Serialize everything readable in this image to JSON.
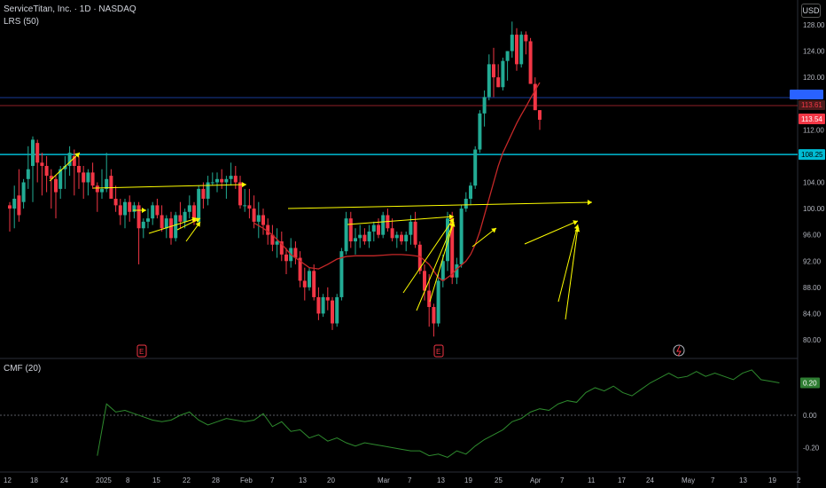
{
  "header": {
    "symbol_line": "ServiceTitan, Inc. · 1D · NASDAQ",
    "indicator": "LRS (50)",
    "currency": "USD",
    "cmf_label": "CMF (20)"
  },
  "colors": {
    "up": "#22ab94",
    "down": "#f23645",
    "trendline": "#ffff00",
    "level_line": "#00bcd4",
    "lrs_line": "#c62828",
    "cmf_line": "#2e8b2e"
  },
  "chart_data": [
    {
      "type": "candlestick",
      "title": "ServiceTitan, Inc. · 1D · NASDAQ",
      "x_tick_labels": [
        "12",
        "18",
        "24",
        "2025",
        "8",
        "15",
        "22",
        "28",
        "Feb",
        "7",
        "13",
        "20",
        "Mar",
        "7",
        "13",
        "19",
        "25",
        "Apr",
        "7",
        "11",
        "17",
        "24",
        "May",
        "7",
        "13",
        "19",
        "2"
      ],
      "y_ticks": [
        80,
        84,
        88,
        92,
        96,
        100,
        104,
        108,
        112,
        116,
        120,
        124,
        128
      ],
      "ylim": [
        78.5,
        130
      ],
      "horizontal_levels": [
        {
          "value": 108.25,
          "label": "108.25"
        },
        {
          "value": 113.54,
          "label": "113.54"
        },
        {
          "value": 113.61,
          "label": "113.61"
        }
      ],
      "last_price_label": "113.54",
      "earnings_markers": [
        "E",
        "E"
      ],
      "candles": [
        [
          100.5,
          101.0,
          96.5,
          100.0
        ],
        [
          100.0,
          103.5,
          97.0,
          101.5
        ],
        [
          102.0,
          106.0,
          98.0,
          99.0
        ],
        [
          101.0,
          104.5,
          100.0,
          104.0
        ],
        [
          104.5,
          109.5,
          103.0,
          106.0
        ],
        [
          106.5,
          111.0,
          101.0,
          110.5
        ],
        [
          110.0,
          110.5,
          104.0,
          107.0
        ],
        [
          107.0,
          108.5,
          102.0,
          106.5
        ],
        [
          106.5,
          108.0,
          102.5,
          105.0
        ],
        [
          105.0,
          106.0,
          100.0,
          104.5
        ],
        [
          104.5,
          105.0,
          98.5,
          102.5
        ],
        [
          103.0,
          106.5,
          101.5,
          106.0
        ],
        [
          106.0,
          108.0,
          103.0,
          106.5
        ],
        [
          106.5,
          109.5,
          105.0,
          108.5
        ],
        [
          108.0,
          109.0,
          102.0,
          106.5
        ],
        [
          106.5,
          108.0,
          103.0,
          105.5
        ],
        [
          105.5,
          106.5,
          101.5,
          104.0
        ],
        [
          104.0,
          106.0,
          102.0,
          105.5
        ],
        [
          105.5,
          107.0,
          103.0,
          103.5
        ],
        [
          103.5,
          104.0,
          99.5,
          102.5
        ],
        [
          102.5,
          106.0,
          101.5,
          103.0
        ],
        [
          103.0,
          108.5,
          102.5,
          104.5
        ],
        [
          105.0,
          106.0,
          101.5,
          101.5
        ],
        [
          101.5,
          103.5,
          99.5,
          100.5
        ],
        [
          100.5,
          101.5,
          97.5,
          99.0
        ],
        [
          99.0,
          101.5,
          97.0,
          101.0
        ],
        [
          101.0,
          102.0,
          98.0,
          99.5
        ],
        [
          99.5,
          101.0,
          98.5,
          100.5
        ],
        [
          100.5,
          101.0,
          91.5,
          97.0
        ],
        [
          97.0,
          98.5,
          95.5,
          98.0
        ],
        [
          98.0,
          100.0,
          97.0,
          98.5
        ],
        [
          98.5,
          101.0,
          97.5,
          100.5
        ],
        [
          100.5,
          101.5,
          98.5,
          99.0
        ],
        [
          99.0,
          100.5,
          96.5,
          97.0
        ],
        [
          97.0,
          99.0,
          95.5,
          98.5
        ],
        [
          98.5,
          99.5,
          94.5,
          95.5
        ],
        [
          95.5,
          99.5,
          95.0,
          99.0
        ],
        [
          99.0,
          101.0,
          97.0,
          98.0
        ],
        [
          98.0,
          100.0,
          97.0,
          99.5
        ],
        [
          99.5,
          102.0,
          98.5,
          100.5
        ],
        [
          100.5,
          101.0,
          97.5,
          98.0
        ],
        [
          98.0,
          103.5,
          97.5,
          103.0
        ],
        [
          103.0,
          104.0,
          100.0,
          101.5
        ],
        [
          101.5,
          105.0,
          100.5,
          104.0
        ],
        [
          104.0,
          105.5,
          103.5,
          104.0
        ],
        [
          104.0,
          105.5,
          102.5,
          104.5
        ],
        [
          104.5,
          106.0,
          103.0,
          104.0
        ],
        [
          104.0,
          105.0,
          101.5,
          104.5
        ],
        [
          104.5,
          107.0,
          103.5,
          105.0
        ],
        [
          105.0,
          106.5,
          103.0,
          104.0
        ],
        [
          104.0,
          105.0,
          100.0,
          100.5
        ],
        [
          100.5,
          103.0,
          99.5,
          100.5
        ],
        [
          100.5,
          103.0,
          98.5,
          100.0
        ],
        [
          100.0,
          102.0,
          97.0,
          98.0
        ],
        [
          98.0,
          101.0,
          95.5,
          99.0
        ],
        [
          99.0,
          100.0,
          96.0,
          97.5
        ],
        [
          97.5,
          98.5,
          94.5,
          96.0
        ],
        [
          96.0,
          97.5,
          93.5,
          94.5
        ],
        [
          94.5,
          97.0,
          92.5,
          95.0
        ],
        [
          95.0,
          96.5,
          92.0,
          93.0
        ],
        [
          93.0,
          94.0,
          90.0,
          92.0
        ],
        [
          92.0,
          95.5,
          91.0,
          94.0
        ],
        [
          94.0,
          95.0,
          91.5,
          92.5
        ],
        [
          92.5,
          93.5,
          88.0,
          89.0
        ],
        [
          89.0,
          91.0,
          86.0,
          88.0
        ],
        [
          88.0,
          91.0,
          87.5,
          90.5
        ],
        [
          90.5,
          91.5,
          86.0,
          86.5
        ],
        [
          86.5,
          88.0,
          83.0,
          84.0
        ],
        [
          84.0,
          87.0,
          83.5,
          86.5
        ],
        [
          86.5,
          88.0,
          84.5,
          86.0
        ],
        [
          86.0,
          86.5,
          81.5,
          82.5
        ],
        [
          82.5,
          87.0,
          82.0,
          86.5
        ],
        [
          86.5,
          94.0,
          86.0,
          93.5
        ],
        [
          93.5,
          99.5,
          93.0,
          98.5
        ],
        [
          98.5,
          99.5,
          94.0,
          95.0
        ],
        [
          95.0,
          97.0,
          93.0,
          95.5
        ],
        [
          95.5,
          97.5,
          94.0,
          96.0
        ],
        [
          96.0,
          97.0,
          94.5,
          95.0
        ],
        [
          95.0,
          97.5,
          94.0,
          96.5
        ],
        [
          96.5,
          98.0,
          95.0,
          97.5
        ],
        [
          97.5,
          98.5,
          95.5,
          96.0
        ],
        [
          96.0,
          99.5,
          95.5,
          99.0
        ],
        [
          99.0,
          100.0,
          96.5,
          97.0
        ],
        [
          97.0,
          98.5,
          95.0,
          95.5
        ],
        [
          95.5,
          96.5,
          94.0,
          96.0
        ],
        [
          96.0,
          96.5,
          94.5,
          95.0
        ],
        [
          95.0,
          96.5,
          93.5,
          96.0
        ],
        [
          96.0,
          99.0,
          94.5,
          98.0
        ],
        [
          98.0,
          99.5,
          94.0,
          94.5
        ],
        [
          94.5,
          95.0,
          90.0,
          90.5
        ],
        [
          90.5,
          91.5,
          86.0,
          87.5
        ],
        [
          87.5,
          90.0,
          82.0,
          85.0
        ],
        [
          85.0,
          85.5,
          80.5,
          82.5
        ],
        [
          82.5,
          90.0,
          82.0,
          89.0
        ],
        [
          89.0,
          93.0,
          88.0,
          92.0
        ],
        [
          92.0,
          99.5,
          90.5,
          98.5
        ],
        [
          98.5,
          99.5,
          88.5,
          89.5
        ],
        [
          89.5,
          92.5,
          88.5,
          91.5
        ],
        [
          91.5,
          100.5,
          91.0,
          100.0
        ],
        [
          100.0,
          102.5,
          99.5,
          101.5
        ],
        [
          101.5,
          104.0,
          100.5,
          103.5
        ],
        [
          103.5,
          109.5,
          103.0,
          109.0
        ],
        [
          109.0,
          115.0,
          108.5,
          114.5
        ],
        [
          114.5,
          118.0,
          112.5,
          117.0
        ],
        [
          117.0,
          123.5,
          116.5,
          122.0
        ],
        [
          122.0,
          124.5,
          117.0,
          120.0
        ],
        [
          120.0,
          122.0,
          118.5,
          118.5
        ],
        [
          118.5,
          123.0,
          118.0,
          122.5
        ],
        [
          122.5,
          124.0,
          119.5,
          124.0
        ],
        [
          124.0,
          128.5,
          123.0,
          126.5
        ],
        [
          126.5,
          127.5,
          121.0,
          122.0
        ],
        [
          122.0,
          127.0,
          121.5,
          126.5
        ],
        [
          126.5,
          127.0,
          123.5,
          125.5
        ],
        [
          125.5,
          126.0,
          119.0,
          119.0
        ],
        [
          119.0,
          120.0,
          115.0,
          115.0
        ],
        [
          115.0,
          115.0,
          112.0,
          113.54
        ]
      ],
      "lrs_50": {
        "name": "LRS (50)",
        "values": [
          [
            53,
            97.8
          ],
          [
            55,
            97.0
          ],
          [
            57,
            96.0
          ],
          [
            59,
            94.6
          ],
          [
            61,
            93.0
          ],
          [
            63,
            92.0
          ],
          [
            65,
            91.0
          ],
          [
            67,
            90.8
          ],
          [
            69,
            91.5
          ],
          [
            71,
            92.3
          ],
          [
            73,
            92.7
          ],
          [
            75,
            92.8
          ],
          [
            77,
            92.8
          ],
          [
            79,
            92.8
          ],
          [
            81,
            92.9
          ],
          [
            83,
            93.0
          ],
          [
            85,
            93.0
          ],
          [
            87,
            92.9
          ],
          [
            89,
            92.7
          ],
          [
            91,
            91.5
          ],
          [
            93,
            89.5
          ],
          [
            94,
            89.0
          ],
          [
            95,
            89.5
          ],
          [
            96,
            90.0
          ],
          [
            97,
            90.8
          ],
          [
            99,
            92.0
          ],
          [
            100,
            93.0
          ],
          [
            101,
            94.5
          ],
          [
            102,
            96.5
          ],
          [
            103,
            99.0
          ],
          [
            104,
            101.5
          ],
          [
            105,
            104.0
          ],
          [
            106,
            106.5
          ],
          [
            107,
            108.5
          ],
          [
            108,
            110.0
          ],
          [
            109,
            111.5
          ],
          [
            110,
            113.0
          ],
          [
            111,
            114.3
          ],
          [
            112,
            115.5
          ],
          [
            113,
            116.8
          ],
          [
            114,
            118.0
          ],
          [
            115,
            119.2
          ]
        ]
      }
    },
    {
      "type": "line",
      "title": "CMF (20)",
      "y_ticks": [
        -0.2,
        0.0,
        0.2
      ],
      "y_tick_labels": [
        "-0.20",
        "0.00",
        "0.20"
      ],
      "ylim": [
        -0.3,
        0.32
      ],
      "zero_line": 0.0,
      "last_value_label": "0.20",
      "series": [
        {
          "values": [
            [
              19,
              -0.25
            ],
            [
              21,
              0.07
            ],
            [
              23,
              0.02
            ],
            [
              25,
              0.03
            ],
            [
              27,
              0.01
            ],
            [
              29,
              -0.01
            ],
            [
              31,
              -0.03
            ],
            [
              33,
              -0.04
            ],
            [
              35,
              -0.03
            ],
            [
              37,
              0.0
            ],
            [
              39,
              0.02
            ],
            [
              41,
              -0.03
            ],
            [
              43,
              -0.06
            ],
            [
              45,
              -0.04
            ],
            [
              47,
              -0.02
            ],
            [
              49,
              -0.03
            ],
            [
              51,
              -0.04
            ],
            [
              53,
              -0.03
            ],
            [
              55,
              0.01
            ],
            [
              57,
              -0.07
            ],
            [
              59,
              -0.04
            ],
            [
              61,
              -0.1
            ],
            [
              63,
              -0.09
            ],
            [
              65,
              -0.14
            ],
            [
              67,
              -0.12
            ],
            [
              69,
              -0.16
            ],
            [
              71,
              -0.14
            ],
            [
              73,
              -0.17
            ],
            [
              75,
              -0.19
            ],
            [
              77,
              -0.17
            ],
            [
              79,
              -0.18
            ],
            [
              81,
              -0.19
            ],
            [
              83,
              -0.2
            ],
            [
              85,
              -0.21
            ],
            [
              87,
              -0.22
            ],
            [
              89,
              -0.22
            ],
            [
              91,
              -0.25
            ],
            [
              93,
              -0.24
            ],
            [
              95,
              -0.26
            ],
            [
              97,
              -0.22
            ],
            [
              99,
              -0.24
            ],
            [
              101,
              -0.19
            ],
            [
              103,
              -0.15
            ],
            [
              105,
              -0.12
            ],
            [
              107,
              -0.09
            ],
            [
              109,
              -0.04
            ],
            [
              111,
              -0.02
            ],
            [
              113,
              0.02
            ],
            [
              115,
              0.04
            ],
            [
              117,
              0.03
            ],
            [
              119,
              0.07
            ],
            [
              121,
              0.09
            ],
            [
              123,
              0.08
            ],
            [
              125,
              0.14
            ],
            [
              127,
              0.17
            ],
            [
              129,
              0.15
            ],
            [
              131,
              0.18
            ],
            [
              133,
              0.14
            ],
            [
              135,
              0.12
            ],
            [
              137,
              0.16
            ],
            [
              139,
              0.2
            ],
            [
              141,
              0.23
            ],
            [
              143,
              0.26
            ],
            [
              145,
              0.23
            ],
            [
              147,
              0.24
            ],
            [
              149,
              0.27
            ],
            [
              151,
              0.24
            ],
            [
              153,
              0.26
            ],
            [
              155,
              0.24
            ],
            [
              157,
              0.22
            ],
            [
              159,
              0.26
            ],
            [
              161,
              0.28
            ],
            [
              163,
              0.22
            ],
            [
              165,
              0.21
            ],
            [
              167,
              0.2
            ]
          ]
        }
      ]
    }
  ]
}
